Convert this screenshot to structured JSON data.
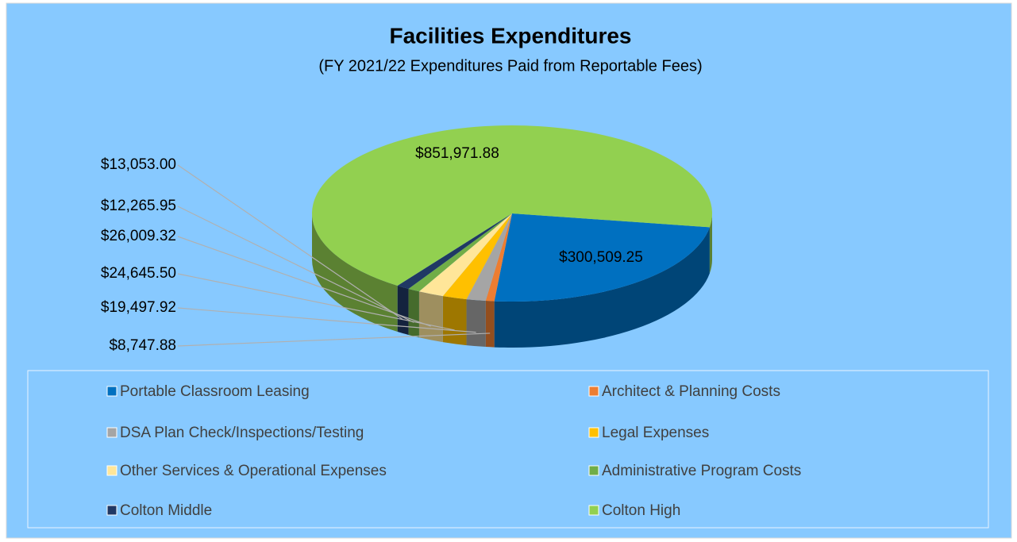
{
  "chart_data": {
    "type": "pie",
    "title": "Facilities Expenditures",
    "subtitle": "(FY 2021/22 Expenditures Paid from Reportable Fees)",
    "categories": [
      "Portable Classroom Leasing",
      "Architect & Planning Costs",
      "DSA Plan Check/Inspections/Testing",
      "Legal Expenses",
      "Other Services & Operational Expenses",
      "Administrative Program Costs",
      "Colton Middle",
      "Colton High"
    ],
    "values": [
      300509.25,
      8747.88,
      19497.92,
      24645.5,
      26009.32,
      12265.95,
      13053.0,
      851971.88
    ],
    "value_labels": [
      "$300,509.25",
      "$8,747.88",
      "$19,497.92",
      "$24,645.50",
      "$26,009.32",
      "$12,265.95",
      "$13,053.00",
      "$851,971.88"
    ],
    "colors": [
      "#0070c0",
      "#ed7d31",
      "#a5a5a5",
      "#ffc000",
      "#ffe699",
      "#70ad47",
      "#203864",
      "#92d050"
    ],
    "legend": "bottom"
  }
}
